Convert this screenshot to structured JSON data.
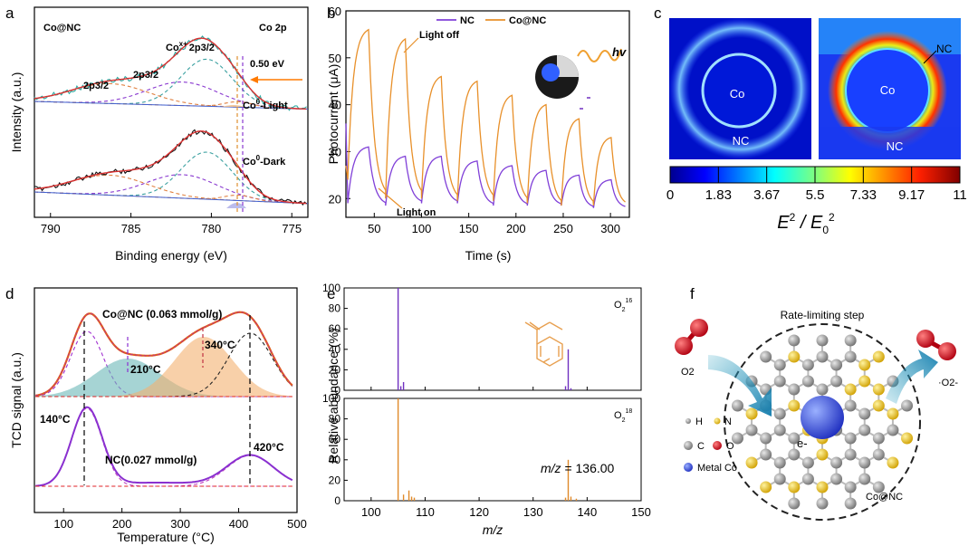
{
  "panels": {
    "a": "a",
    "b": "b",
    "c": "c",
    "d": "d",
    "e": "e",
    "f": "f"
  },
  "chart_data": [
    {
      "id": "a",
      "type": "line",
      "title_left": "Co@NC",
      "title_right": "Co 2p",
      "xlabel": "Binding energy (eV)",
      "ylabel": "Intensity (a.u.)",
      "xlim": [
        791,
        774
      ],
      "xticks": [
        790,
        785,
        780,
        775
      ],
      "annotations": [
        "Co",
        "x+",
        "2p3/2",
        "2p3/2",
        "2p3/2",
        "0.50 eV",
        "Co",
        "0",
        "-Light",
        "Co",
        "0",
        "-Dark"
      ],
      "colors": {
        "data": "#2aa8a0",
        "fit": "#d93030",
        "p1": "#8a3ad0",
        "p2": "#e08040",
        "p3": "#3aa0a0",
        "bg": "#4060d0",
        "dash1": "#8a3ad0",
        "dash2": "#e09030",
        "arrow": "#ff7a00"
      }
    },
    {
      "id": "b",
      "type": "line",
      "xlabel": "Time (s)",
      "ylabel": "Photocurrent (μA)",
      "xlim": [
        20,
        320
      ],
      "ylim": [
        16,
        60
      ],
      "xticks": [
        50,
        100,
        150,
        200,
        250,
        300
      ],
      "yticks": [
        20,
        30,
        40,
        50,
        60
      ],
      "series": [
        {
          "name": "NC",
          "color": "#8040d8"
        },
        {
          "name": "Co@NC",
          "color": "#e8902a"
        }
      ],
      "annotations": [
        "Light off",
        "Light on",
        "hv"
      ],
      "colors": {
        "inset_core": "#2255ff"
      }
    },
    {
      "id": "c",
      "type": "heatmap",
      "colorbar_ticks": [
        "0",
        "1.83",
        "3.67",
        "5.5",
        "7.33",
        "9.17",
        "11"
      ],
      "colorbar_label": "E",
      "colorbar_sup": "2",
      "colorbar_mid": " / E",
      "colorbar_sub": "0",
      "colorbar_sup2": "2",
      "labels_left": [
        "Co",
        "NC"
      ],
      "labels_right": [
        "Co",
        "NC",
        "NC"
      ]
    },
    {
      "id": "d",
      "type": "line",
      "xlabel": "Temperature (°C)",
      "ylabel": "TCD signal (a.u.)",
      "xlim": [
        50,
        500
      ],
      "xticks": [
        100,
        200,
        300,
        400,
        500
      ],
      "annotations": [
        "Co@NC (0.063 mmol/g)",
        "210°C",
        "340°C",
        "140°C",
        "NC(0.027 mmol/g)",
        "420°C"
      ],
      "colors": {
        "data": "#e0601a",
        "fit": "#c03080",
        "nc": "#8a30d0",
        "teal": "#6ab8b8",
        "orange": "#f4b070",
        "red": "#e02020"
      }
    },
    {
      "id": "e",
      "type": "bar",
      "xlabel": "m/z",
      "ylabel": "Relative abundance (%)",
      "xlim": [
        95,
        150
      ],
      "ylim": [
        0,
        100
      ],
      "xticks": [
        100,
        110,
        120,
        130,
        140,
        150
      ],
      "yticks": [
        0,
        20,
        40,
        60,
        80,
        100
      ],
      "series": [
        {
          "name": "O2 16",
          "color": "#7030c0",
          "x": [
            105,
            105.5,
            106,
            136,
            136.5,
            137
          ],
          "values": [
            100,
            4,
            8,
            4,
            40,
            2
          ]
        },
        {
          "name": "O2 18",
          "color": "#e08a2a",
          "x": [
            105,
            106,
            107,
            107.5,
            108,
            136,
            136.5,
            137,
            138
          ],
          "values": [
            100,
            6,
            10,
            4,
            3,
            3,
            40,
            4,
            2
          ]
        }
      ],
      "label_16": "O",
      "sub_16": "2",
      "sup_16": "16",
      "label_18": "O",
      "sub_18": "2",
      "sup_18": "18",
      "mz_label": "m/z",
      "mz_value": " = 136.00"
    },
    {
      "id": "f",
      "type": "diagram",
      "title": "Rate-limiting step",
      "labels": [
        "O2",
        "·O2-",
        "e-",
        "Co@NC"
      ],
      "legend": [
        "H",
        "N",
        "C",
        "O",
        "Metal Co"
      ]
    }
  ]
}
